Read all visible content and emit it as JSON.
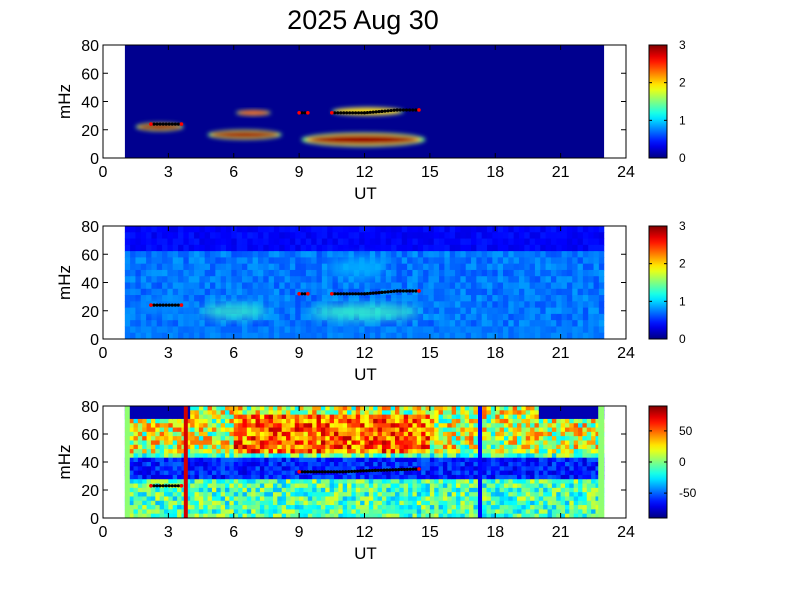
{
  "title": "2025 Aug 30",
  "colors": {
    "background_blue": "#00008f",
    "marker": "#000000",
    "marker_end": "#ff0000",
    "scan_red": "#d40000",
    "scan_blue": "#0000ff",
    "edge_green": "#8fff70"
  },
  "colormap": "jet",
  "chart_data": [
    {
      "type": "heatmap",
      "name": "panel_1",
      "xlabel": "UT",
      "ylabel": "mHz",
      "xlim": [
        0,
        24
      ],
      "ylim": [
        0,
        80
      ],
      "xticks": [
        0,
        3,
        6,
        9,
        12,
        15,
        18,
        21,
        24
      ],
      "yticks": [
        0,
        20,
        40,
        60,
        80
      ],
      "data_extent": [
        1,
        23
      ],
      "colorbar": {
        "range": [
          0,
          3
        ],
        "ticks": [
          0,
          1,
          2,
          3
        ]
      },
      "blobs": [
        {
          "x": [
            1.5,
            3.7
          ],
          "y": [
            19,
            25
          ],
          "peak": 3
        },
        {
          "x": [
            4.8,
            8.2
          ],
          "y": [
            13,
            20
          ],
          "peak": 3
        },
        {
          "x": [
            6.1,
            7.7
          ],
          "y": [
            30,
            34
          ],
          "peak": 2.5
        },
        {
          "x": [
            9.1,
            14.8
          ],
          "y": [
            8,
            18
          ],
          "peak": 3
        },
        {
          "x": [
            10.5,
            13.8
          ],
          "y": [
            30,
            36
          ],
          "peak": 2
        }
      ],
      "marker_tracks": [
        {
          "x": [
            2.2,
            3.6
          ],
          "y": [
            24,
            24
          ]
        },
        {
          "x": [
            9.0,
            9.4
          ],
          "y": [
            32,
            32
          ]
        },
        {
          "x": [
            10.5,
            12.0,
            12.8,
            13.5,
            14.5
          ],
          "y": [
            32,
            32,
            33,
            34,
            34
          ]
        }
      ]
    },
    {
      "type": "heatmap",
      "name": "panel_2",
      "xlabel": "UT",
      "ylabel": "mHz",
      "xlim": [
        0,
        24
      ],
      "ylim": [
        0,
        80
      ],
      "xticks": [
        0,
        3,
        6,
        9,
        12,
        15,
        18,
        21,
        24
      ],
      "yticks": [
        0,
        20,
        40,
        60,
        80
      ],
      "data_extent": [
        1,
        23
      ],
      "colorbar": {
        "range": [
          0,
          3
        ],
        "ticks": [
          0,
          1,
          2,
          3
        ]
      },
      "blobs": [
        {
          "x": [
            4.5,
            7.5
          ],
          "y": [
            15,
            24
          ],
          "peak": 1.3
        },
        {
          "x": [
            9.5,
            14.5
          ],
          "y": [
            14,
            24
          ],
          "peak": 1.3
        },
        {
          "x": [
            10.5,
            13.0
          ],
          "y": [
            43,
            58
          ],
          "peak": 0.9
        },
        {
          "x": [
            1.5,
            4.0
          ],
          "y": [
            18,
            28
          ],
          "peak": 0.8
        }
      ],
      "marker_tracks": [
        {
          "x": [
            2.2,
            3.6
          ],
          "y": [
            24,
            24
          ]
        },
        {
          "x": [
            9.0,
            9.4
          ],
          "y": [
            32,
            32
          ]
        },
        {
          "x": [
            10.5,
            12.0,
            12.8,
            13.5,
            14.5
          ],
          "y": [
            32,
            32,
            33,
            34,
            34
          ]
        }
      ]
    },
    {
      "type": "heatmap",
      "name": "panel_3",
      "xlabel": "UT",
      "ylabel": "mHz",
      "xlim": [
        0,
        24
      ],
      "ylim": [
        0,
        80
      ],
      "xticks": [
        0,
        3,
        6,
        9,
        12,
        15,
        18,
        21,
        24
      ],
      "yticks": [
        0,
        20,
        40,
        60,
        80
      ],
      "data_extent": [
        1,
        23
      ],
      "colorbar": {
        "range": [
          -90,
          90
        ],
        "ticks": [
          50,
          0,
          -50
        ]
      },
      "vertical_lines": [
        {
          "x": 3.8,
          "color": "#d40000"
        },
        {
          "x": 17.3,
          "color": "#0000ff"
        }
      ],
      "marker_tracks": [
        {
          "x": [
            2.2,
            3.6
          ],
          "y": [
            23,
            23
          ]
        },
        {
          "x": [
            9.0,
            11.0,
            12.5,
            14.5
          ],
          "y": [
            33,
            33,
            34,
            35
          ]
        }
      ]
    }
  ]
}
